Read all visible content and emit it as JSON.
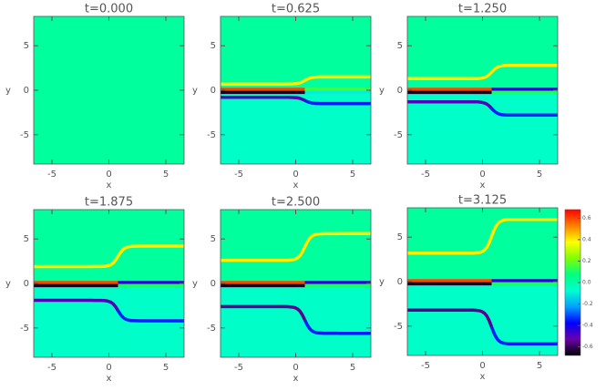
{
  "chart_data": [
    {
      "type": "heatmap",
      "title": "t=0.000",
      "xlabel": "x",
      "ylabel": "y",
      "xlim": [
        -6.6,
        6.6
      ],
      "ylim": [
        -8.3,
        8.3
      ],
      "xticks": [
        -5,
        0,
        5
      ],
      "yticks": [
        -5,
        0,
        5
      ],
      "background": 0.02,
      "lower_background": 0.02,
      "fronts": []
    },
    {
      "type": "heatmap",
      "title": "t=0.625",
      "xlabel": "x",
      "ylabel": "y",
      "xlim": [
        -6.6,
        6.6
      ],
      "ylim": [
        -8.3,
        8.3
      ],
      "xticks": [
        -5,
        0,
        5
      ],
      "yticks": [
        -5,
        0,
        5
      ],
      "background": 0.02,
      "lower_background": -0.06,
      "fronts": [
        {
          "y": [
            0.7,
            1.5
          ],
          "value_left": 0.4,
          "value_right": 0.4
        },
        {
          "y": [
            0.1,
            0.1
          ],
          "value_left": 0.6,
          "value_right": 0.15
        },
        {
          "y": [
            -0.25,
            -0.25
          ],
          "value_left": -0.65,
          "value_right": -0.1
        },
        {
          "y": [
            -0.8,
            -1.5
          ],
          "value_left": -0.5,
          "value_right": -0.35
        }
      ]
    },
    {
      "type": "heatmap",
      "title": "t=1.250",
      "xlabel": "x",
      "ylabel": "y",
      "xlim": [
        -6.6,
        6.6
      ],
      "ylim": [
        -8.3,
        8.3
      ],
      "xticks": [
        -5,
        0,
        5
      ],
      "yticks": [
        -5,
        0,
        5
      ],
      "background": 0.02,
      "lower_background": -0.06,
      "fronts": [
        {
          "y": [
            1.3,
            2.8
          ],
          "value_left": 0.4,
          "value_right": 0.4
        },
        {
          "y": [
            0.1,
            0.1
          ],
          "value_left": 0.6,
          "value_right": -0.45
        },
        {
          "y": [
            -0.25,
            -0.25
          ],
          "value_left": -0.65,
          "value_right": 0.1
        },
        {
          "y": [
            -1.3,
            -2.8
          ],
          "value_left": -0.5,
          "value_right": -0.35
        }
      ]
    },
    {
      "type": "heatmap",
      "title": "t=1.875",
      "xlabel": "x",
      "ylabel": "y",
      "xlim": [
        -6.6,
        6.6
      ],
      "ylim": [
        -8.3,
        8.3
      ],
      "xticks": [
        -5,
        0,
        5
      ],
      "yticks": [
        -5,
        0,
        5
      ],
      "background": 0.02,
      "lower_background": -0.06,
      "fronts": [
        {
          "y": [
            1.9,
            4.2
          ],
          "value_left": 0.4,
          "value_right": 0.4
        },
        {
          "y": [
            0.1,
            0.1
          ],
          "value_left": 0.6,
          "value_right": -0.45
        },
        {
          "y": [
            -0.25,
            -0.25
          ],
          "value_left": -0.65,
          "value_right": 0.1
        },
        {
          "y": [
            -1.9,
            -4.2
          ],
          "value_left": -0.5,
          "value_right": -0.35
        }
      ]
    },
    {
      "type": "heatmap",
      "title": "t=2.500",
      "xlabel": "x",
      "ylabel": "y",
      "xlim": [
        -6.6,
        6.6
      ],
      "ylim": [
        -8.3,
        8.3
      ],
      "xticks": [
        -5,
        0,
        5
      ],
      "yticks": [
        -5,
        0,
        5
      ],
      "background": 0.02,
      "lower_background": -0.06,
      "fronts": [
        {
          "y": [
            2.6,
            5.6
          ],
          "value_left": 0.4,
          "value_right": 0.4
        },
        {
          "y": [
            0.1,
            0.1
          ],
          "value_left": 0.6,
          "value_right": -0.45
        },
        {
          "y": [
            -0.25,
            -0.25
          ],
          "value_left": -0.65,
          "value_right": 0.1
        },
        {
          "y": [
            -2.6,
            -5.6
          ],
          "value_left": -0.55,
          "value_right": -0.35
        }
      ]
    },
    {
      "type": "heatmap",
      "title": "t=3.125",
      "xlabel": "x",
      "ylabel": "y",
      "xlim": [
        -6.6,
        6.6
      ],
      "ylim": [
        -8.3,
        8.3
      ],
      "xticks": [
        -5,
        0,
        5
      ],
      "yticks": [
        -5,
        0,
        5
      ],
      "background": 0.02,
      "lower_background": -0.06,
      "fronts": [
        {
          "y": [
            3.2,
            7.0
          ],
          "value_left": 0.4,
          "value_right": 0.4
        },
        {
          "y": [
            0.1,
            0.1
          ],
          "value_left": 0.6,
          "value_right": -0.45
        },
        {
          "y": [
            -0.25,
            -0.25
          ],
          "value_left": -0.65,
          "value_right": 0.1
        },
        {
          "y": [
            -3.2,
            -7.0
          ],
          "value_left": -0.55,
          "value_right": -0.35
        }
      ]
    }
  ],
  "colorbar": {
    "lim": [
      -0.68,
      0.68
    ],
    "ticks": [
      0.6,
      0.4,
      0.2,
      {
        "value": 0,
        "label": "0.0"
      },
      -0.2,
      -0.4,
      -0.6
    ],
    "colors": [
      "#000000",
      "#6a00a8",
      "#0000ff",
      "#00a0ff",
      "#00ffd0",
      "#00ff80",
      "#80ff00",
      "#ffff00",
      "#ff8000",
      "#ff0000"
    ]
  }
}
